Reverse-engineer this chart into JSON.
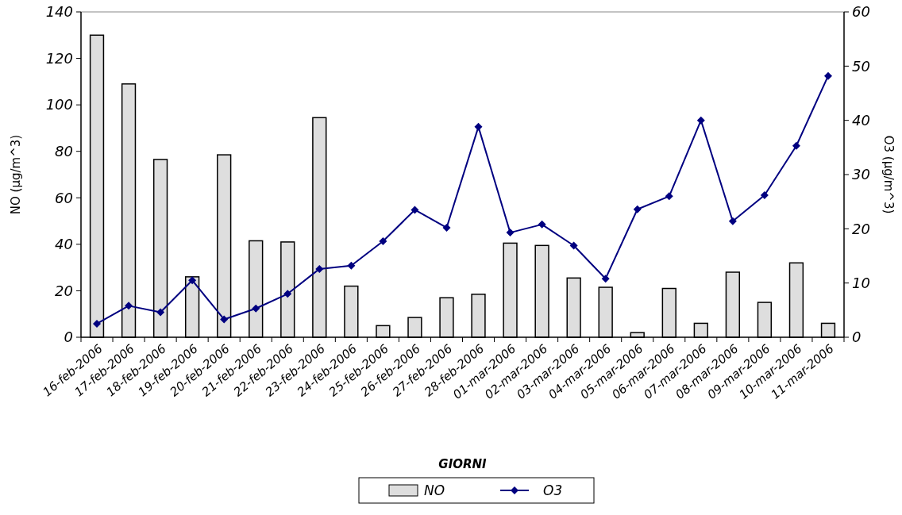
{
  "chart_data": {
    "type": "bar",
    "xlabel": "GIORNI",
    "ylabel": "NO (µg/m^3)",
    "y2label": "O3 (µg/m^3)",
    "categories": [
      "16-feb-2006",
      "17-feb-2006",
      "18-feb-2006",
      "19-feb-2006",
      "20-feb-2006",
      "21-feb-2006",
      "22-feb-2006",
      "23-feb-2006",
      "24-feb-2006",
      "25-feb-2006",
      "26-feb-2006",
      "27-feb-2006",
      "28-feb-2006",
      "01-mar-2006",
      "02-mar-2006",
      "03-mar-2006",
      "04-mar-2006",
      "05-mar-2006",
      "06-mar-2006",
      "07-mar-2006",
      "08-mar-2006",
      "09-mar-2006",
      "10-mar-2006",
      "11-mar-2006"
    ],
    "series": [
      {
        "name": "NO",
        "color": "#dedede",
        "values": [
          130,
          109,
          76.5,
          26,
          78.5,
          41.5,
          41,
          94.5,
          22,
          5,
          8.5,
          17,
          18.5,
          40.5,
          39.5,
          25.5,
          21.5,
          2,
          21,
          6,
          28,
          15,
          32,
          6
        ]
      },
      {
        "name": "O3",
        "type": "line",
        "axis": "y2",
        "color": "#000080",
        "marker": "diamond",
        "values": [
          2.5,
          5.8,
          4.6,
          10.5,
          3.3,
          5.3,
          8,
          12.6,
          13.2,
          17.7,
          23.5,
          20.2,
          38.8,
          19.3,
          20.8,
          16.9,
          10.8,
          23.6,
          26,
          40,
          21.4,
          26.2,
          35.3,
          48.2
        ]
      }
    ],
    "ylim": [
      0,
      140
    ],
    "yticks": [
      0,
      20,
      40,
      60,
      80,
      100,
      120,
      140
    ],
    "y2lim": [
      0,
      60
    ],
    "y2ticks": [
      0,
      10,
      20,
      30,
      40,
      50,
      60
    ],
    "legend": "bottom"
  }
}
